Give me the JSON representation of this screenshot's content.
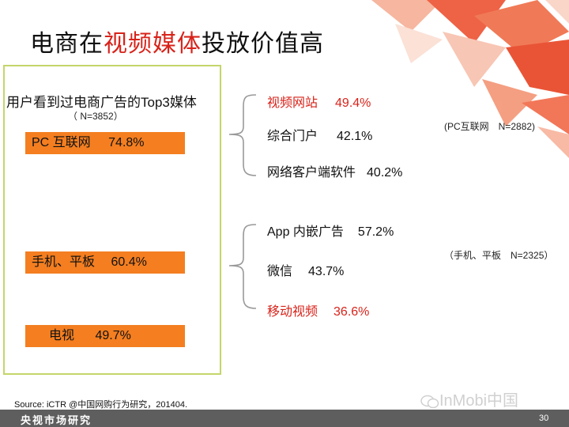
{
  "title": {
    "prefix": "电商在",
    "highlight": "视频媒体",
    "suffix": "投放价值高"
  },
  "left_panel": {
    "subtitle": "用户看到过电商广告的Top3媒体",
    "sample": "（ N=3852）",
    "bars": [
      {
        "label": "PC 互联网",
        "value": "74.8%"
      },
      {
        "label": "手机、平板",
        "value": "60.4%"
      },
      {
        "label": "电视",
        "value": "49.7%"
      }
    ]
  },
  "pc_group": {
    "note": "(PC互联网　N=2882)",
    "items": [
      {
        "label": "视频网站",
        "value": "49.4%",
        "highlight": true
      },
      {
        "label": "综合门户",
        "value": "42.1%",
        "highlight": false
      },
      {
        "label": "网络客户端软件",
        "value": "40.2%",
        "highlight": false
      }
    ]
  },
  "mobile_group": {
    "note": "（手机、平板　N=2325）",
    "items": [
      {
        "label": "App 内嵌广告",
        "value": "57.2%",
        "highlight": false
      },
      {
        "label": "微信",
        "value": "43.7%",
        "highlight": false
      },
      {
        "label": "移动视频",
        "value": "36.6%",
        "highlight": true
      }
    ]
  },
  "source": "Source: iCTR @中国网购行为研究，201404.",
  "footer": {
    "org": "央视市场研究",
    "page": "30"
  },
  "watermark": "InMobi中国",
  "colors": {
    "accent_red": "#d8231a",
    "bar_orange": "#f47e20",
    "box_border": "#c3d66a",
    "footer_gray": "#5e5e5e"
  }
}
